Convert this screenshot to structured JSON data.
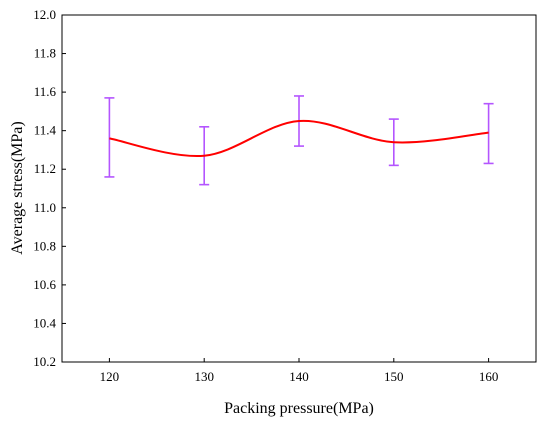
{
  "chart_data": {
    "type": "line",
    "xlabel": "Packing pressure(MPa)",
    "ylabel": "Average stress(MPa)",
    "xlim": [
      115,
      165
    ],
    "ylim": [
      10.2,
      12.0
    ],
    "x_ticks": [
      "120",
      "130",
      "140",
      "150",
      "160"
    ],
    "y_ticks": [
      "10.2",
      "10.4",
      "10.6",
      "10.8",
      "11.0",
      "11.2",
      "11.4",
      "11.6",
      "11.8",
      "12.0"
    ],
    "grid": false,
    "series": [
      {
        "x": [
          120,
          130,
          140,
          150,
          160
        ],
        "y": [
          11.36,
          11.27,
          11.45,
          11.34,
          11.39
        ],
        "error_low": [
          11.16,
          11.12,
          11.32,
          11.22,
          11.23
        ],
        "error_high": [
          11.57,
          11.42,
          11.58,
          11.46,
          11.54
        ],
        "line_color": "#ff0000",
        "error_bar_color": "#b455ff"
      }
    ]
  }
}
